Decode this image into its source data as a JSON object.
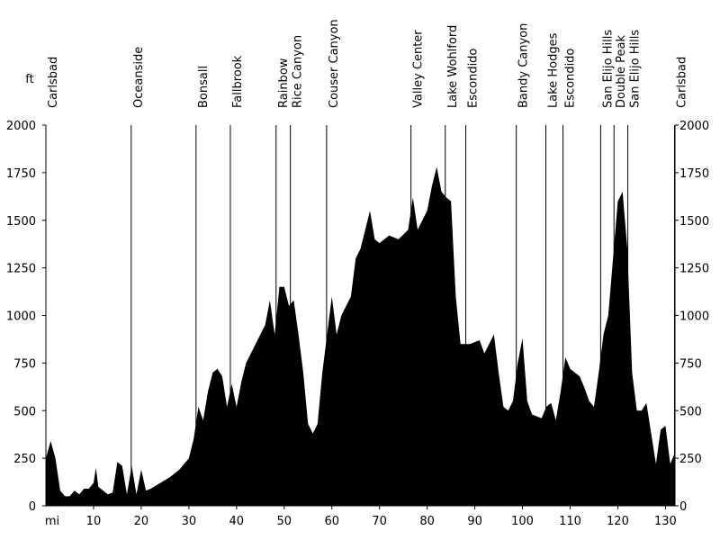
{
  "chart_data": {
    "type": "area",
    "x_label": "mi",
    "y_label": "ft",
    "color": "#000000",
    "xlim": [
      0,
      132
    ],
    "xticks": [
      10,
      20,
      30,
      40,
      50,
      60,
      70,
      80,
      90,
      100,
      110,
      120,
      130
    ],
    "ylim": [
      0,
      2000
    ],
    "yticks": [
      0,
      250,
      500,
      750,
      1000,
      1250,
      1500,
      1750,
      2000
    ],
    "annotations": [
      {
        "label": "Carlsbad",
        "x": 0
      },
      {
        "label": "Oceanside",
        "x": 17.9
      },
      {
        "label": "Bonsall",
        "x": 31.5
      },
      {
        "label": "Fallbrook",
        "x": 38.7
      },
      {
        "label": "Rainbow",
        "x": 48.3
      },
      {
        "label": "Rice Canyon",
        "x": 51.3
      },
      {
        "label": "Couser Canyon",
        "x": 58.9
      },
      {
        "label": "Valley Center",
        "x": 76.6
      },
      {
        "label": "Lake Wohlford",
        "x": 83.8
      },
      {
        "label": "Escondido",
        "x": 88.1
      },
      {
        "label": "Bandy Canyon",
        "x": 98.7
      },
      {
        "label": "Lake Hodges",
        "x": 104.9
      },
      {
        "label": "Escondido",
        "x": 108.5
      },
      {
        "label": "San Elijo Hills",
        "x": 116.4
      },
      {
        "label": "Double Peak",
        "x": 119.2
      },
      {
        "label": "San Elijo Hills",
        "x": 122.1
      },
      {
        "label": "Carlsbad",
        "x": 131.9
      }
    ],
    "x": [
      0,
      1,
      2,
      3,
      4,
      5,
      6,
      7,
      8,
      9,
      10,
      10.5,
      11,
      12,
      13,
      14,
      15,
      16,
      17,
      18,
      19,
      20,
      21,
      22,
      24,
      26,
      28,
      30,
      31,
      32,
      33,
      34,
      35,
      36,
      37,
      38,
      39,
      40,
      41,
      42,
      44,
      45,
      46,
      47,
      48,
      49,
      50,
      51,
      52,
      53,
      54,
      55,
      56,
      57,
      58,
      59,
      60,
      61,
      62,
      63,
      64,
      65,
      66,
      67,
      68,
      69,
      70,
      72,
      74,
      76,
      77,
      78,
      79,
      80,
      81,
      82,
      83,
      84,
      85,
      86,
      87,
      89,
      91,
      92,
      93,
      94,
      95,
      96,
      97,
      98,
      99,
      100,
      101,
      102,
      104,
      105,
      106,
      107,
      108,
      109,
      110,
      111,
      112,
      113,
      114,
      115,
      116,
      117,
      118,
      119,
      120,
      121,
      122,
      123,
      124,
      125,
      126,
      127,
      128,
      129,
      130,
      131,
      132
    ],
    "values": [
      250,
      340,
      250,
      80,
      50,
      50,
      80,
      60,
      90,
      90,
      120,
      200,
      100,
      80,
      60,
      70,
      230,
      210,
      60,
      210,
      60,
      190,
      80,
      90,
      120,
      150,
      190,
      250,
      350,
      520,
      450,
      600,
      700,
      720,
      680,
      520,
      640,
      520,
      650,
      750,
      850,
      900,
      950,
      1080,
      900,
      1150,
      1150,
      1050,
      1080,
      900,
      700,
      430,
      380,
      430,
      700,
      900,
      1100,
      900,
      1000,
      1050,
      1100,
      1300,
      1350,
      1450,
      1550,
      1400,
      1380,
      1420,
      1400,
      1450,
      1620,
      1450,
      1500,
      1550,
      1680,
      1780,
      1650,
      1620,
      1600,
      1100,
      850,
      850,
      870,
      800,
      850,
      900,
      700,
      520,
      500,
      550,
      750,
      880,
      550,
      480,
      460,
      520,
      540,
      450,
      600,
      780,
      720,
      700,
      680,
      620,
      550,
      520,
      700,
      900,
      1000,
      1300,
      1600,
      1650,
      1350,
      700,
      500,
      500,
      540,
      380,
      220,
      400,
      420,
      220,
      280
    ]
  }
}
